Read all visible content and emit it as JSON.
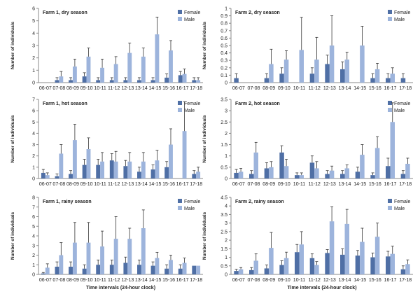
{
  "figure": {
    "x_axis_label": "Time intervals (24-hour clock)",
    "y_axis_label": "Number of individuals"
  },
  "colors": {
    "female": "#4f6fa5",
    "male": "#9db4dc",
    "error": "#333333",
    "axis": "#888888"
  },
  "chart_data": [
    {
      "type": "bar",
      "title": "Farm 1, dry season",
      "xlabel": "",
      "ylabel": "Number of individuals",
      "ylim": [
        0,
        6
      ],
      "yticks": [
        0,
        1,
        2,
        3,
        4,
        5,
        6
      ],
      "legend": [
        "Female",
        "Male"
      ],
      "legend_position": "top-right",
      "categories": [
        "06-07",
        "07-08",
        "08-09",
        "09-10",
        "10-11",
        "11-12",
        "12-13",
        "13-14",
        "14-15",
        "15-16",
        "16-17",
        "17-18"
      ],
      "series": [
        {
          "name": "Female",
          "values": [
            0,
            0.2,
            0.2,
            0.5,
            0.2,
            0.2,
            0.2,
            0.2,
            0.2,
            0.4,
            0.6,
            0.2
          ],
          "errors": [
            0,
            0.2,
            0.2,
            0.3,
            0.2,
            0.2,
            0.2,
            0.2,
            0.2,
            0.3,
            0.3,
            0.2
          ]
        },
        {
          "name": "Male",
          "values": [
            0,
            0.5,
            1.3,
            2.1,
            1.2,
            1.5,
            2.4,
            2.1,
            3.9,
            2.6,
            0.7,
            0.2
          ],
          "errors": [
            0,
            0.4,
            0.6,
            0.7,
            0.7,
            0.6,
            0.8,
            0.7,
            1.4,
            0.8,
            0.4,
            0.2
          ]
        }
      ]
    },
    {
      "type": "bar",
      "title": "Farm 2, dry season",
      "xlabel": "",
      "ylabel": "Number of individuals",
      "ylim": [
        0,
        1
      ],
      "yticks": [
        0,
        0.1,
        0.2,
        0.3,
        0.4,
        0.5,
        0.6,
        0.7,
        0.8,
        0.9,
        1
      ],
      "legend": [
        "Female",
        "Male"
      ],
      "legend_position": "top-right",
      "categories": [
        "06-07",
        "07-08",
        "08-09",
        "09-10",
        "10-11",
        "11-12",
        "12-13",
        "13-14",
        "14-15",
        "15-16",
        "16-17",
        "17-18"
      ],
      "series": [
        {
          "name": "Female",
          "values": [
            0.06,
            0,
            0.06,
            0.12,
            0,
            0.12,
            0.25,
            0.18,
            0,
            0.06,
            0.06,
            0.06
          ],
          "errors": [
            0.06,
            0,
            0.06,
            0.08,
            0,
            0.08,
            0.12,
            0.1,
            0,
            0.06,
            0.06,
            0.06
          ]
        },
        {
          "name": "Male",
          "values": [
            0,
            0,
            0.25,
            0.31,
            0.44,
            0.31,
            0.5,
            0.31,
            0.5,
            0.18,
            0.12,
            0
          ],
          "errors": [
            0,
            0,
            0.2,
            0.12,
            0.44,
            0.3,
            0.4,
            0.1,
            0.26,
            0.08,
            0.08,
            0
          ]
        }
      ]
    },
    {
      "type": "bar",
      "title": "Farm 1, hot season",
      "xlabel": "",
      "ylabel": "Number of individuals",
      "ylim": [
        0,
        7
      ],
      "yticks": [
        0,
        1,
        2,
        3,
        4,
        5,
        6,
        7
      ],
      "legend": [
        "Female",
        "Male"
      ],
      "legend_position": "top-right",
      "categories": [
        "06-07",
        "07-08",
        "08-09",
        "09-10",
        "10-11",
        "11-12",
        "12-13",
        "13-14",
        "14-15",
        "15-16",
        "16-17",
        "17-18"
      ],
      "series": [
        {
          "name": "Female",
          "values": [
            0.5,
            0.2,
            0.4,
            1.2,
            1.2,
            1.6,
            1.1,
            0.6,
            0.8,
            1.0,
            0,
            0.4
          ],
          "errors": [
            0.3,
            0.2,
            0.3,
            0.5,
            0.5,
            0.6,
            0.5,
            0.4,
            0.4,
            0.5,
            0,
            0.3
          ]
        },
        {
          "name": "Male",
          "values": [
            0.3,
            2.2,
            3.4,
            2.6,
            1.5,
            1.5,
            1.5,
            1.5,
            1.6,
            3.0,
            4.2,
            0.6
          ],
          "errors": [
            0.2,
            0.8,
            1.4,
            1.0,
            0.8,
            0.9,
            0.8,
            0.8,
            0.9,
            1.4,
            2.6,
            0.4
          ]
        }
      ]
    },
    {
      "type": "bar",
      "title": "Farm 2, hot season",
      "xlabel": "",
      "ylabel": "Number of individuals",
      "ylim": [
        0,
        3.5
      ],
      "yticks": [
        0,
        0.5,
        1,
        1.5,
        2,
        2.5,
        3,
        3.5
      ],
      "legend": [
        "Female",
        "Male"
      ],
      "legend_position": "top-right",
      "categories": [
        "06-07",
        "07-08",
        "08-09",
        "09-10",
        "10-11",
        "11-12",
        "12-13",
        "13-14",
        "14-15",
        "15-16",
        "16-17",
        "17-18"
      ],
      "series": [
        {
          "name": "Female",
          "values": [
            0.25,
            0.2,
            0.45,
            1.15,
            0.15,
            0.7,
            0.2,
            0.2,
            0.3,
            0.15,
            0.55,
            0.2
          ],
          "errors": [
            0.15,
            0.15,
            0.25,
            0.3,
            0.1,
            0.3,
            0.15,
            0.15,
            0.2,
            0.1,
            0.35,
            0.15
          ]
        },
        {
          "name": "Male",
          "values": [
            0.3,
            1.15,
            0.5,
            0.55,
            0.15,
            0.45,
            0.35,
            0.45,
            1.05,
            1.35,
            2.5,
            0.65
          ],
          "errors": [
            0.15,
            0.45,
            0.25,
            0.3,
            0.1,
            0.3,
            0.2,
            0.15,
            0.45,
            0.5,
            0.85,
            0.25
          ]
        }
      ]
    },
    {
      "type": "bar",
      "title": "Farm 1, rainy season",
      "xlabel": "Time intervals (24-hour clock)",
      "ylabel": "Number of individuals",
      "ylim": [
        0,
        8
      ],
      "yticks": [
        0,
        1,
        2,
        3,
        4,
        5,
        6,
        7,
        8
      ],
      "legend": [
        "Female",
        "Male"
      ],
      "legend_position": "top-right",
      "categories": [
        "06-07",
        "07-08",
        "08-09",
        "09-10",
        "10-11",
        "11-12",
        "12-13",
        "13-14",
        "14-15",
        "15-16",
        "16-17",
        "17-18"
      ],
      "series": [
        {
          "name": "Female",
          "values": [
            0.1,
            0.8,
            0.8,
            0.6,
            1.0,
            1.0,
            1.2,
            1.0,
            0.9,
            0.6,
            0.6,
            0.9
          ],
          "errors": [
            0.1,
            0.5,
            0.5,
            0.4,
            0.5,
            0.5,
            0.6,
            0.5,
            0.4,
            0.4,
            0.4,
            0
          ]
        },
        {
          "name": "Male",
          "values": [
            0.7,
            2.0,
            3.3,
            3.3,
            2.9,
            3.7,
            3.7,
            4.8,
            1.7,
            1.5,
            1.2,
            0.9
          ],
          "errors": [
            0.4,
            1.3,
            2.1,
            2.1,
            1.6,
            2.3,
            1.1,
            1.9,
            0.6,
            0.5,
            0.5,
            0
          ]
        }
      ]
    },
    {
      "type": "bar",
      "title": "Farm 2, rainy season",
      "xlabel": "Time intervals (24-hour clock)",
      "ylabel": "Number of individuals",
      "ylim": [
        0,
        4.5
      ],
      "yticks": [
        0,
        0.5,
        1,
        1.5,
        2,
        2.5,
        3,
        3.5,
        4,
        4.5
      ],
      "legend": [
        "Female",
        "Male"
      ],
      "legend_position": "top-right",
      "categories": [
        "06-07",
        "07-08",
        "08-09",
        "09-10",
        "10-11",
        "11-12",
        "12-13",
        "13-14",
        "14-15",
        "15-16",
        "16-17",
        "17-18"
      ],
      "series": [
        {
          "name": "Female",
          "values": [
            0.2,
            0.25,
            0.35,
            0.55,
            1.3,
            0.95,
            1.25,
            1.15,
            1.1,
            1.0,
            1.05,
            0.3
          ],
          "errors": [
            0.1,
            0.15,
            0.2,
            0.25,
            0.45,
            0.25,
            0.2,
            0.35,
            0.3,
            0.25,
            0.3,
            0.2
          ]
        },
        {
          "name": "Male",
          "values": [
            0.3,
            0.8,
            1.55,
            0.95,
            1.75,
            0.55,
            3.1,
            2.95,
            1.9,
            2.2,
            1.2,
            0.6
          ],
          "errors": [
            0.1,
            0.4,
            0.9,
            0.35,
            0.75,
            0.2,
            0.85,
            0.85,
            0.8,
            0.8,
            0.45,
            0.25
          ]
        }
      ]
    }
  ]
}
